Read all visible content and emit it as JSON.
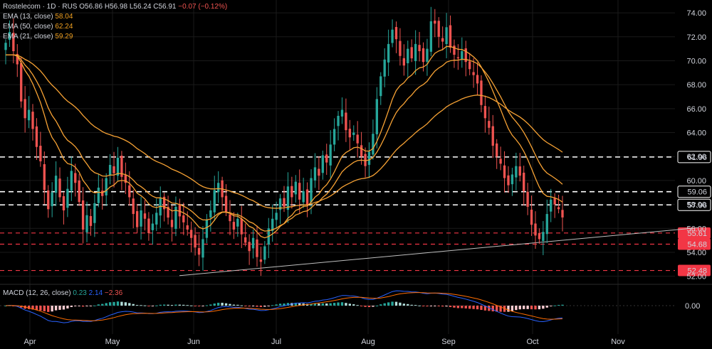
{
  "header": {
    "symbol_line": "Rostelecom · 1D · RUS",
    "ohlc": {
      "o": "O56.86",
      "h": "H56.98",
      "l": "L56.24",
      "c": "C56.91",
      "chg": "−0.07 (−0.12%)"
    },
    "indicators": [
      {
        "label": "EMA (13, close)",
        "value": "58.04"
      },
      {
        "label": "EMA (50, close)",
        "value": "62.24"
      },
      {
        "label": "EMA (21, close)",
        "value": "59.29"
      }
    ]
  },
  "macd": {
    "label": "MACD (12, 26, close)",
    "v1": "0.23",
    "v2": "2.14",
    "v3": "−2.36"
  },
  "colors": {
    "up": "#26a69a",
    "down": "#ef5350",
    "ema": "#f7a234",
    "white_level": "#ffffff",
    "red_level": "#f23645",
    "trend": "#bfbfbf",
    "macd_line": "#2962ff",
    "signal_line": "#ff6d00"
  },
  "chart_data": {
    "type": "candlestick",
    "y_axis": {
      "ticks": [
        "74.00",
        "72.00",
        "70.00",
        "68.00",
        "66.00",
        "64.00",
        "62.00",
        "60.00",
        "58.00",
        "56.00",
        "54.00",
        "52.00"
      ],
      "range": [
        51.8,
        74.6
      ]
    },
    "x_axis": {
      "labels": [
        "Apr",
        "May",
        "Jun",
        "Jul",
        "Aug",
        "Sep",
        "Oct",
        "Nov"
      ]
    },
    "horizontal_levels": [
      {
        "value": 61.96,
        "label": "61.96",
        "style": "white-dashed"
      },
      {
        "value": 59.06,
        "label": "59.06",
        "style": "white-dashed"
      },
      {
        "value": 57.96,
        "label": "57.96",
        "style": "white-dashed"
      },
      {
        "value": 55.61,
        "label": "55.61",
        "style": "red-dashed"
      },
      {
        "value": 54.68,
        "label": "54.68",
        "style": "red-dashed"
      },
      {
        "value": 52.48,
        "label": "52.48",
        "style": "red-dashed"
      }
    ],
    "macd_axis_label": "0.00",
    "closes": [
      71.5,
      72.4,
      70.8,
      69.7,
      66.6,
      65.2,
      65.9,
      64.3,
      62.8,
      61.6,
      59.2,
      57.6,
      59.0,
      60.4,
      58.6,
      57.5,
      59.3,
      60.8,
      59.8,
      58.2,
      55.9,
      57.1,
      56.2,
      58.1,
      59.4,
      58.7,
      60.2,
      61.3,
      60.6,
      61.9,
      60.3,
      59.8,
      58.6,
      57.2,
      56.1,
      57.5,
      56.8,
      55.6,
      56.4,
      57.3,
      58.5,
      57.6,
      56.9,
      56.1,
      57.8,
      57.0,
      56.5,
      55.9,
      55.2,
      54.4,
      53.8,
      55.1,
      56.7,
      57.5,
      59.2,
      59.8,
      58.6,
      57.4,
      56.6,
      55.9,
      56.8,
      55.5,
      54.8,
      54.1,
      55.2,
      53.6,
      53.2,
      54.5,
      56.0,
      56.8,
      57.3,
      58.5,
      57.8,
      59.5,
      58.6,
      59.9,
      58.4,
      59.1,
      58.0,
      60.2,
      61.1,
      60.4,
      62.1,
      61.5,
      63.0,
      64.3,
      65.4,
      65.9,
      64.2,
      63.6,
      64.0,
      63.1,
      62.0,
      61.2,
      62.4,
      63.9,
      66.8,
      68.7,
      70.1,
      71.4,
      72.6,
      71.8,
      70.4,
      69.6,
      71.0,
      70.2,
      71.4,
      70.8,
      69.9,
      71.0,
      73.3,
      73.1,
      72.0,
      71.6,
      72.8,
      71.1,
      70.5,
      70.2,
      70.8,
      69.9,
      69.3,
      68.8,
      68.1,
      66.3,
      65.2,
      64.4,
      62.9,
      62.0,
      61.4,
      60.2,
      59.6,
      60.5,
      61.2,
      60.4,
      59.1,
      57.8,
      56.3,
      55.4,
      55.1,
      55.7,
      57.2,
      58.4,
      58.0,
      57.6,
      56.91
    ]
  }
}
